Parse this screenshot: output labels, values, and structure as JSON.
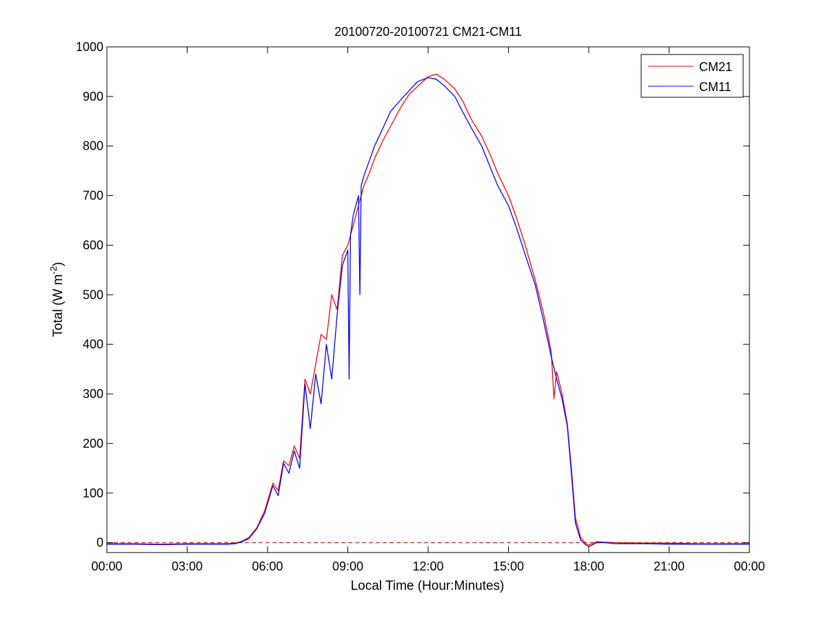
{
  "chart_data": {
    "type": "line",
    "title": "20100720-20100721 CM21-CM11",
    "xlabel": "Local Time (Hour:Minutes)",
    "ylabel_main": "Total (W m",
    "ylabel_sup": "-2",
    "ylabel_close": ")",
    "x_unit": "hours",
    "xlim": [
      0,
      24
    ],
    "ylim": [
      -20,
      1000
    ],
    "x_ticks": [
      {
        "value": 0,
        "label": "00:00"
      },
      {
        "value": 3,
        "label": "03:00"
      },
      {
        "value": 6,
        "label": "06:00"
      },
      {
        "value": 9,
        "label": "09:00"
      },
      {
        "value": 12,
        "label": "12:00"
      },
      {
        "value": 15,
        "label": "15:00"
      },
      {
        "value": 18,
        "label": "18:00"
      },
      {
        "value": 21,
        "label": "21:00"
      },
      {
        "value": 24,
        "label": "00:00"
      }
    ],
    "y_ticks": [
      0,
      100,
      200,
      300,
      400,
      500,
      600,
      700,
      800,
      900,
      1000
    ],
    "grid": false,
    "legend_position": "top-right",
    "reference_line": {
      "y": 0,
      "style": "dashed",
      "color": "#cc0000"
    },
    "series": [
      {
        "name": "CM21",
        "color": "#ff0000",
        "x": [
          0,
          1,
          2,
          3,
          4,
          4.5,
          4.8,
          5.0,
          5.3,
          5.6,
          5.9,
          6.2,
          6.4,
          6.6,
          6.8,
          7.0,
          7.2,
          7.4,
          7.6,
          7.8,
          8.0,
          8.2,
          8.4,
          8.6,
          8.8,
          9.0,
          9.2,
          9.4,
          9.6,
          9.8,
          10.0,
          10.3,
          10.6,
          11.0,
          11.3,
          11.6,
          12.0,
          12.3,
          12.6,
          13.0,
          13.3,
          13.6,
          14.0,
          14.3,
          14.6,
          15.0,
          15.3,
          15.6,
          16.0,
          16.3,
          16.6,
          16.7,
          16.8,
          17.0,
          17.2,
          17.35,
          17.5,
          17.7,
          17.9,
          18.0,
          18.3,
          18.6,
          19,
          20,
          21,
          22,
          23,
          24
        ],
        "y": [
          -2,
          -2,
          -3,
          -2,
          -2,
          -2,
          -1,
          2,
          10,
          30,
          65,
          120,
          105,
          165,
          155,
          195,
          170,
          330,
          300,
          360,
          420,
          410,
          500,
          470,
          580,
          600,
          640,
          680,
          720,
          745,
          775,
          810,
          840,
          880,
          905,
          920,
          940,
          945,
          935,
          915,
          890,
          855,
          820,
          785,
          745,
          700,
          655,
          605,
          530,
          465,
          385,
          290,
          345,
          300,
          240,
          150,
          50,
          10,
          -2,
          -5,
          2,
          1,
          0,
          -1,
          -1,
          -2,
          -2,
          -2
        ]
      },
      {
        "name": "CM11",
        "color": "#0000ff",
        "x": [
          0,
          1,
          2,
          3,
          4,
          4.5,
          4.8,
          5.0,
          5.3,
          5.6,
          5.9,
          6.2,
          6.4,
          6.6,
          6.8,
          7.0,
          7.2,
          7.4,
          7.6,
          7.8,
          8.0,
          8.2,
          8.4,
          8.6,
          8.8,
          9.0,
          9.05,
          9.1,
          9.2,
          9.4,
          9.45,
          9.5,
          9.6,
          9.8,
          10.0,
          10.3,
          10.6,
          11.0,
          11.3,
          11.6,
          12.0,
          12.3,
          12.6,
          13.0,
          13.3,
          13.6,
          14.0,
          14.3,
          14.6,
          15.0,
          15.3,
          15.6,
          16.0,
          16.3,
          16.6,
          16.8,
          17.0,
          17.2,
          17.35,
          17.5,
          17.7,
          17.9,
          18.0,
          18.3,
          18.6,
          19,
          20,
          21,
          22,
          23,
          24
        ],
        "y": [
          -3,
          -3,
          -4,
          -3,
          -3,
          -3,
          -2,
          1,
          8,
          28,
          60,
          115,
          95,
          160,
          140,
          185,
          150,
          320,
          230,
          340,
          280,
          400,
          330,
          460,
          560,
          590,
          330,
          620,
          660,
          700,
          500,
          720,
          740,
          770,
          800,
          835,
          870,
          895,
          912,
          930,
          938,
          935,
          922,
          900,
          868,
          838,
          800,
          760,
          720,
          680,
          635,
          585,
          520,
          450,
          375,
          330,
          290,
          235,
          140,
          40,
          5,
          -5,
          -8,
          0,
          0,
          -2,
          -2,
          -3,
          -3,
          -3,
          -3
        ]
      }
    ]
  }
}
